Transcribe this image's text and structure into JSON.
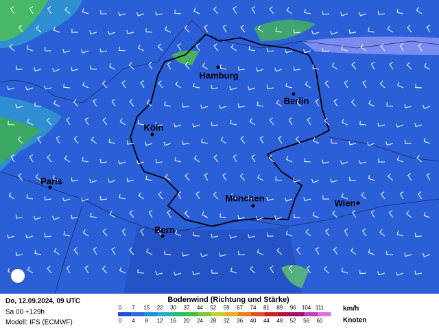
{
  "map": {
    "cities": [
      {
        "name": "Hamburg"
      },
      {
        "name": "Berlin"
      },
      {
        "name": "Köln"
      },
      {
        "name": "Paris"
      },
      {
        "name": "München"
      },
      {
        "name": "Wien"
      },
      {
        "name": "Bern"
      }
    ]
  },
  "footer": {
    "date": "Do, 12.09.2024, 09 UTC",
    "run": "Sa 00 +129h",
    "model": "Modell: IFS (ECMWF)"
  },
  "legend": {
    "title": "Bodenwind (Richtung und Stärke)",
    "kmh_unit": "km/h",
    "knots_unit": "Knoten",
    "kmh": [
      0,
      7,
      15,
      22,
      30,
      37,
      44,
      52,
      59,
      67,
      74,
      81,
      89,
      96,
      104,
      111
    ],
    "knots": [
      0,
      4,
      8,
      12,
      16,
      20,
      24,
      28,
      32,
      36,
      40,
      44,
      48,
      52,
      56,
      60
    ]
  }
}
